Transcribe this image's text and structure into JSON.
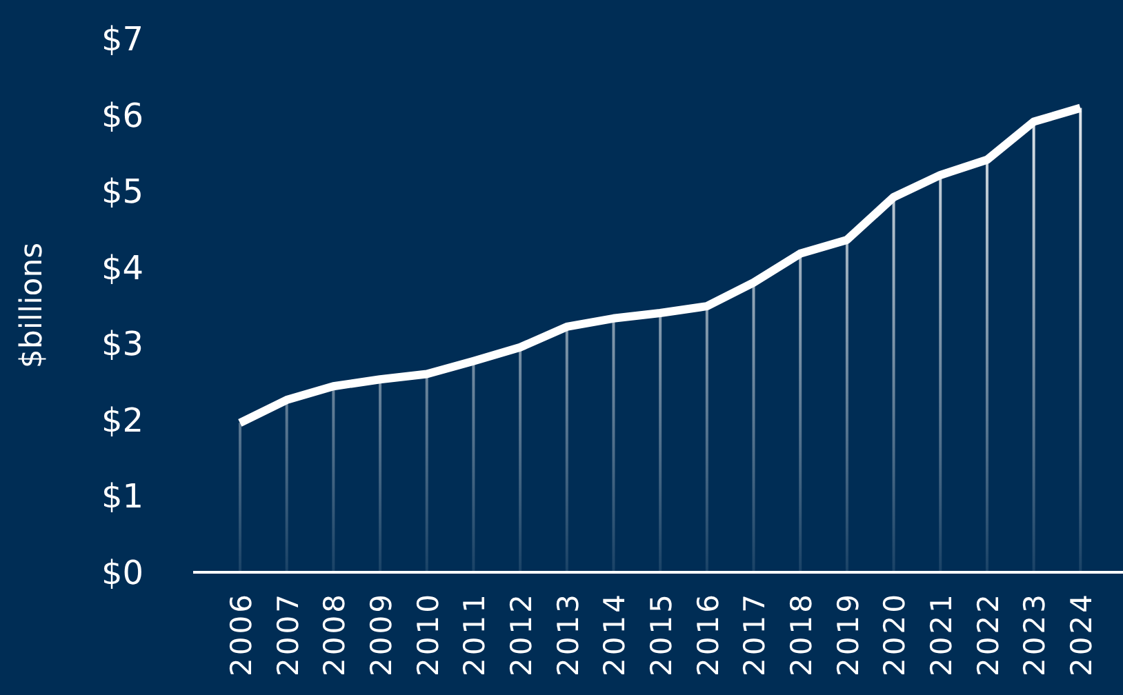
{
  "chart_data": {
    "type": "line",
    "ylabel": "$billions",
    "categories": [
      "2006",
      "2007",
      "2008",
      "2009",
      "2010",
      "2011",
      "2012",
      "2013",
      "2014",
      "2015",
      "2016",
      "2017",
      "2018",
      "2019",
      "2020",
      "2021",
      "2022",
      "2023",
      "2024"
    ],
    "series": [
      {
        "type": "bar",
        "color": "#ffffff",
        "values": [
          1.96,
          2.26,
          2.44,
          2.53,
          2.6,
          2.77,
          2.95,
          3.22,
          3.33,
          3.4,
          3.49,
          3.8,
          4.18,
          4.36,
          4.92,
          5.21,
          5.41,
          5.91,
          6.09
        ]
      },
      {
        "color": "#ffffff",
        "values": [
          1.96,
          2.26,
          2.44,
          2.53,
          2.6,
          2.77,
          2.95,
          3.22,
          3.33,
          3.4,
          3.49,
          3.8,
          4.18,
          4.36,
          4.92,
          5.21,
          5.41,
          5.91,
          6.09
        ]
      }
    ],
    "ylim": [
      0,
      7
    ],
    "yticks": [
      {
        "value": 0,
        "label": "$0"
      },
      {
        "value": 1,
        "label": "$1"
      },
      {
        "value": 2,
        "label": "$2"
      },
      {
        "value": 3,
        "label": "$3"
      },
      {
        "value": 4,
        "label": "$4"
      },
      {
        "value": 5,
        "label": "$5"
      },
      {
        "value": 6,
        "label": "$6"
      },
      {
        "value": 7,
        "label": "$7"
      }
    ],
    "grid": false,
    "legend": false,
    "marker": "none",
    "line_style": "solid"
  }
}
